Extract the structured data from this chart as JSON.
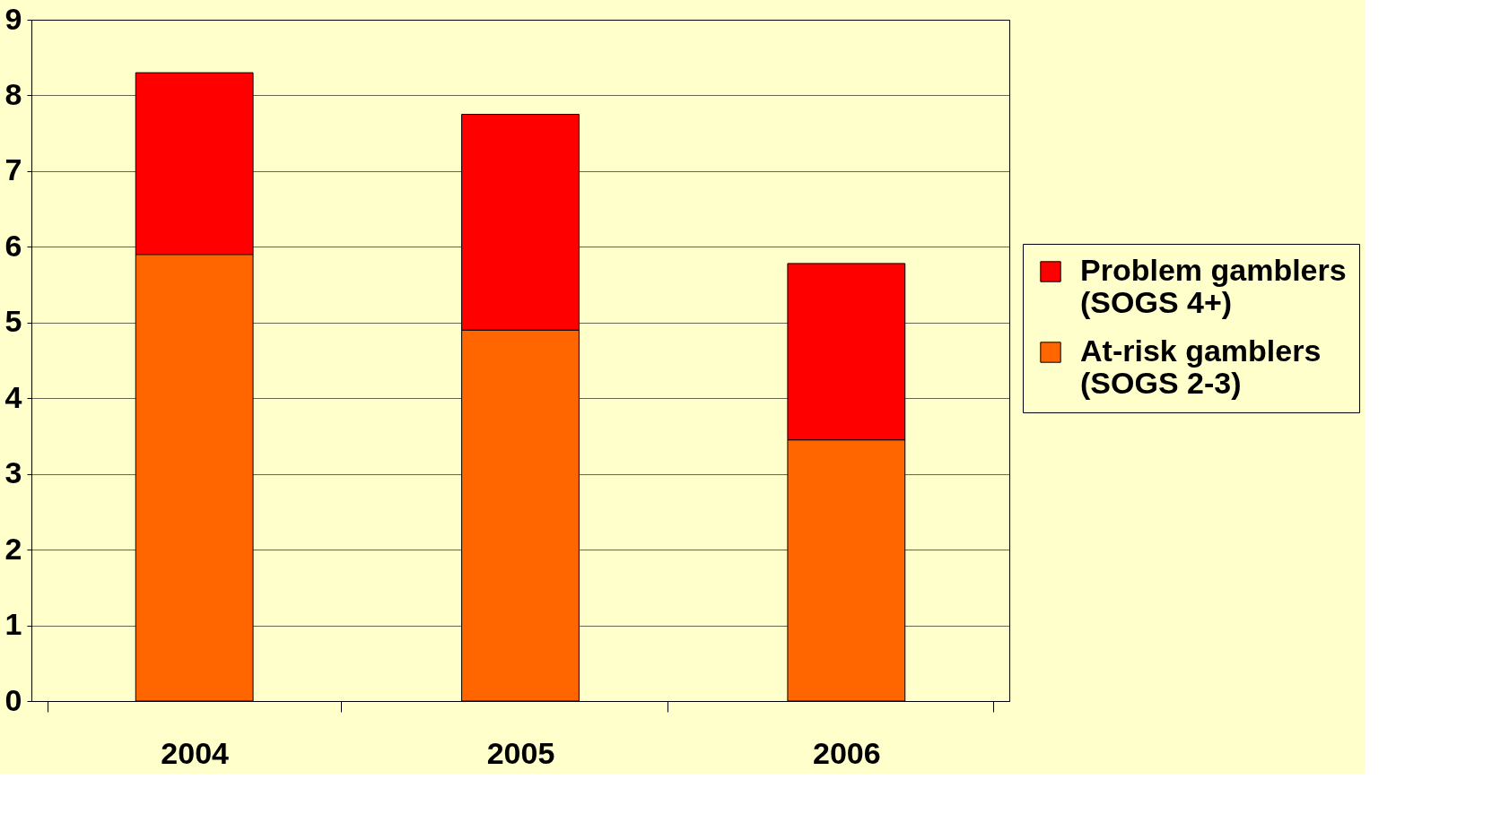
{
  "chart_data": {
    "type": "bar",
    "stacked": true,
    "categories": [
      "2004",
      "2005",
      "2006"
    ],
    "series": [
      {
        "name": "At-risk gamblers (SOGS 2-3)",
        "color": "#ff6600",
        "values": [
          5.9,
          4.9,
          3.45
        ]
      },
      {
        "name": "Problem gamblers (SOGS 4+)",
        "color": "#ff0000",
        "values": [
          2.4,
          2.85,
          2.33
        ]
      }
    ],
    "ylim": [
      0,
      9
    ],
    "yticks": [
      0,
      1,
      2,
      3,
      4,
      5,
      6,
      7,
      8,
      9
    ],
    "grid": "y",
    "legend": "right"
  }
}
